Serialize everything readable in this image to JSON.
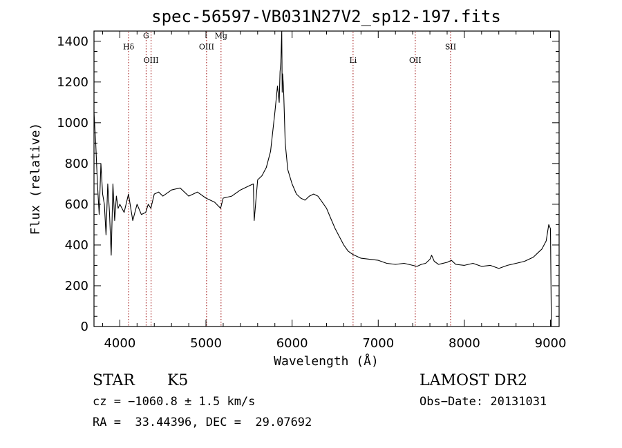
{
  "chart_data": {
    "type": "line",
    "title": "spec-56597-VB031N27V2_sp12-197.fits",
    "xlabel": "Wavelength (Å)",
    "ylabel": "Flux (relative)",
    "xlim": [
      3700,
      9100
    ],
    "ylim": [
      0,
      1450
    ],
    "x_ticks": [
      4000,
      5000,
      6000,
      7000,
      8000,
      9000
    ],
    "y_ticks": [
      0,
      200,
      400,
      600,
      800,
      1000,
      1200,
      1400
    ],
    "grid": false,
    "line_color": "#000000",
    "marker_color": "#990000",
    "series": [
      {
        "x": [
          3700,
          3720,
          3740,
          3760,
          3780,
          3800,
          3820,
          3840,
          3860,
          3880,
          3900,
          3920,
          3940,
          3960,
          3980,
          4000,
          4050,
          4100,
          4150,
          4200,
          4250,
          4300,
          4330,
          4360,
          4400,
          4450,
          4500,
          4600,
          4700,
          4800,
          4900,
          5000,
          5100,
          5170,
          5200,
          5300,
          5400,
          5500,
          5550,
          5560,
          5600,
          5650,
          5700,
          5750,
          5800,
          5830,
          5850,
          5860,
          5870,
          5880,
          5885,
          5890,
          5900,
          5920,
          5950,
          6000,
          6050,
          6100,
          6150,
          6200,
          6250,
          6300,
          6350,
          6400,
          6450,
          6500,
          6550,
          6600,
          6650,
          6700,
          6750,
          6800,
          6900,
          7000,
          7100,
          7200,
          7300,
          7400,
          7450,
          7500,
          7550,
          7600,
          7620,
          7650,
          7700,
          7800,
          7850,
          7900,
          8000,
          8100,
          8200,
          8300,
          8400,
          8500,
          8600,
          8700,
          8800,
          8850,
          8900,
          8950,
          8980,
          9000,
          9010
        ],
        "y": [
          1050,
          900,
          700,
          550,
          800,
          650,
          600,
          450,
          700,
          560,
          350,
          700,
          520,
          640,
          580,
          600,
          560,
          650,
          520,
          600,
          550,
          560,
          600,
          580,
          650,
          660,
          640,
          670,
          680,
          640,
          660,
          630,
          610,
          580,
          630,
          640,
          670,
          690,
          700,
          520,
          720,
          740,
          780,
          860,
          1050,
          1180,
          1100,
          1250,
          1300,
          1450,
          1150,
          1240,
          1180,
          900,
          770,
          700,
          650,
          630,
          620,
          640,
          650,
          640,
          610,
          580,
          530,
          480,
          440,
          400,
          370,
          355,
          345,
          335,
          330,
          325,
          310,
          305,
          310,
          300,
          295,
          305,
          310,
          330,
          350,
          320,
          305,
          315,
          325,
          305,
          300,
          310,
          295,
          300,
          285,
          300,
          310,
          320,
          340,
          360,
          380,
          420,
          500,
          480,
          0
        ]
      }
    ],
    "line_markers": [
      {
        "name": "Hδ",
        "x": 4102,
        "label_y": 1360
      },
      {
        "name": "G",
        "x": 4305,
        "label_y": 1415
      },
      {
        "name": "OIII",
        "x": 4363,
        "label_y": 1295
      },
      {
        "name": "OIII",
        "x": 5007,
        "label_y": 1360
      },
      {
        "name": "Mg",
        "x": 5175,
        "label_y": 1415
      },
      {
        "name": "Li",
        "x": 6708,
        "label_y": 1295
      },
      {
        "name": "OII",
        "x": 7430,
        "label_y": 1295
      },
      {
        "name": "SII",
        "x": 7840,
        "label_y": 1360
      }
    ]
  },
  "info": {
    "star_class": "STAR",
    "subclass": "K5",
    "survey": "LAMOST DR2",
    "cz": "cz = −1060.8 ± 1.5 km/s",
    "obs_date": "Obs−Date: 20131031",
    "coords": "RA =  33.44396, DEC =  29.07692"
  }
}
